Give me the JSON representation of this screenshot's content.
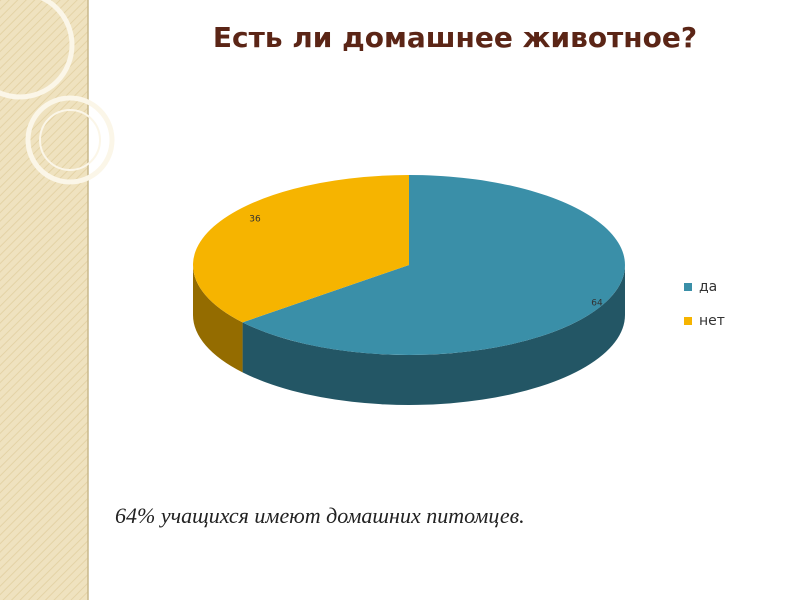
{
  "chart_data": {
    "type": "pie3d",
    "title": "Есть ли  домашнее животное?",
    "categories": [
      "да",
      "нет"
    ],
    "values": [
      64,
      36
    ],
    "colors": [
      "#3a8fa8",
      "#f6b400"
    ],
    "legend": "right",
    "caption": "64% учащихся имеют домашних питомцев."
  }
}
